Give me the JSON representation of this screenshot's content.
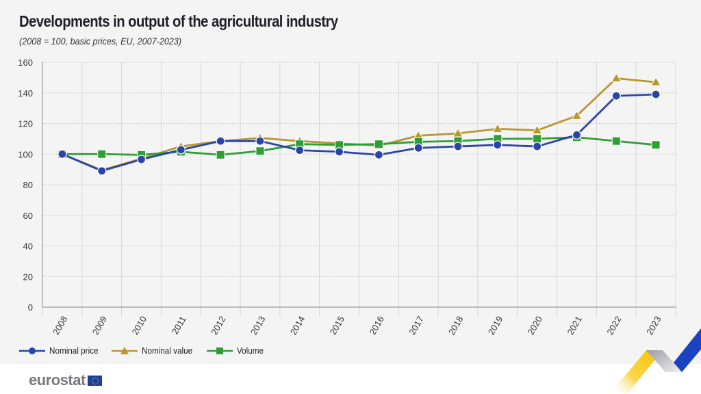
{
  "header": {
    "title": "Developments in output of the agricultural industry",
    "subtitle": "(2008 = 100, basic prices, EU, 2007-2023)"
  },
  "legend": [
    {
      "name": "Nominal price",
      "marker": "circle",
      "color": "#2a44a8"
    },
    {
      "name": "Nominal value",
      "marker": "triangle",
      "color": "#b8972e"
    },
    {
      "name": "Volume",
      "marker": "square",
      "color": "#2e9e35"
    }
  ],
  "branding": {
    "logo_text": "eurostat",
    "flag_icon": "eu-flag-icon"
  },
  "chart_data": {
    "type": "line",
    "title": "Developments in output of the agricultural industry",
    "subtitle": "(2008 = 100, basic prices, EU, 2007-2023)",
    "xlabel": "",
    "ylabel": "",
    "categories": [
      "2008",
      "2009",
      "2010",
      "2011",
      "2012",
      "2013",
      "2014",
      "2015",
      "2016",
      "2017",
      "2018",
      "2019",
      "2020",
      "2021",
      "2022",
      "2023"
    ],
    "ylim": [
      0,
      160
    ],
    "yticks": [
      0,
      20,
      40,
      60,
      80,
      100,
      120,
      140,
      160
    ],
    "grid": true,
    "legend_position": "bottom-left",
    "series": [
      {
        "name": "Nominal price",
        "color": "#2a44a8",
        "marker": "circle",
        "values": [
          100,
          89,
          96.5,
          102.8,
          108.5,
          108.5,
          102.5,
          101.5,
          99.5,
          104,
          105,
          106,
          105,
          112.5,
          138,
          139
        ]
      },
      {
        "name": "Nominal value",
        "color": "#b8972e",
        "marker": "triangle",
        "values": [
          100,
          89.5,
          97,
          105,
          108.5,
          110.5,
          108.5,
          107,
          105.5,
          112,
          113.5,
          116.5,
          115.5,
          125,
          149.5,
          147
        ]
      },
      {
        "name": "Volume",
        "color": "#2e9e35",
        "marker": "square",
        "values": [
          100,
          100,
          99.5,
          101.5,
          99.5,
          102,
          106.5,
          106,
          106.5,
          108,
          108.5,
          110,
          110,
          111,
          108.5,
          106
        ]
      }
    ]
  }
}
